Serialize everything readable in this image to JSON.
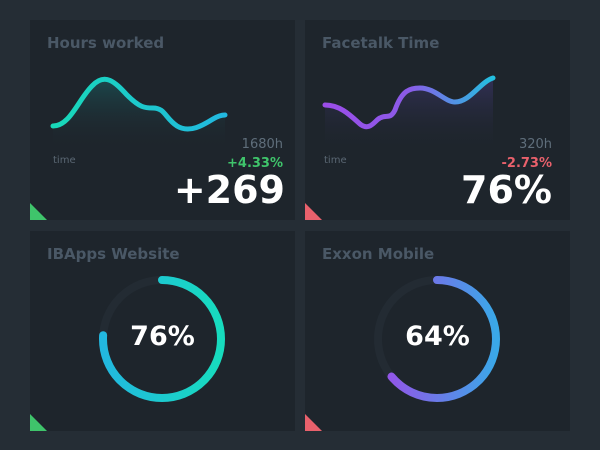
{
  "cards": [
    {
      "title": "Hours worked",
      "axis_label": "time",
      "total": "1680h",
      "change": "+4.33%",
      "change_color": "#3fc46b",
      "value": "+269",
      "trend": "up"
    },
    {
      "title": "Facetalk Time",
      "axis_label": "time",
      "total": "320h",
      "change": "-2.73%",
      "change_color": "#e9616c",
      "value": "76%",
      "trend": "down"
    },
    {
      "title": "IBApps Website",
      "value": "76%",
      "progress": 76,
      "trend": "up"
    },
    {
      "title": "Exxon Mobile",
      "value": "64%",
      "progress": 64,
      "trend": "down"
    }
  ],
  "colors": {
    "up": "#3fc46b",
    "down": "#e9616c",
    "teal": "#17dcbe",
    "blue": "#22b8e0",
    "purple": "#9b4de8"
  }
}
